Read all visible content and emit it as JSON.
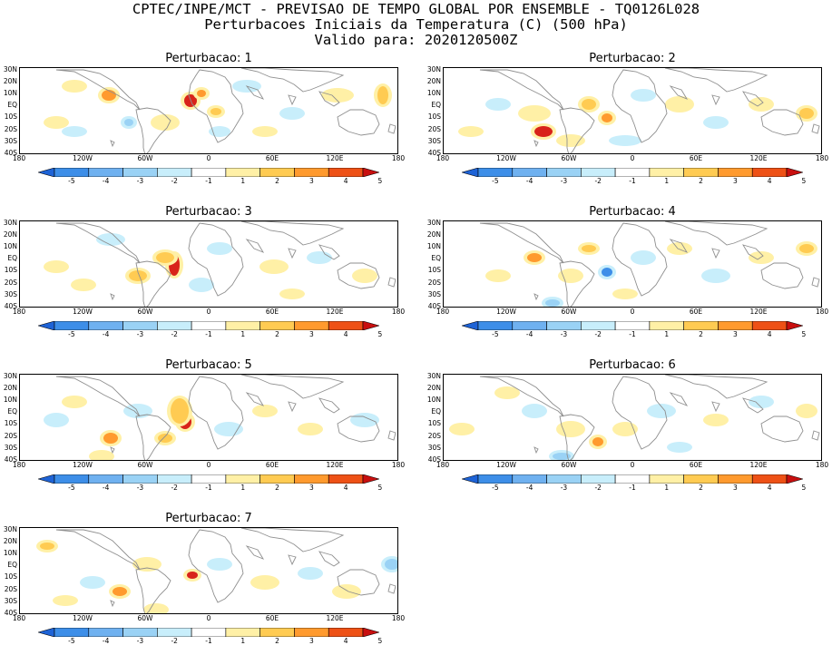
{
  "header": {
    "line1": "CPTEC/INPE/MCT - PREVISAO DE TEMPO GLOBAL POR ENSEMBLE - TQ0126L028",
    "line2": "Perturbacoes Iniciais da Temperatura (C) (500 hPa)",
    "line3": "Valido para: 2020120500Z"
  },
  "panels": [
    {
      "title": "Perturbacao: 1"
    },
    {
      "title": "Perturbacao: 2"
    },
    {
      "title": "Perturbacao: 3"
    },
    {
      "title": "Perturbacao: 4"
    },
    {
      "title": "Perturbacao: 5"
    },
    {
      "title": "Perturbacao: 6"
    },
    {
      "title": "Perturbacao: 7"
    }
  ],
  "lat_labels": [
    "30N",
    "20N",
    "10N",
    "EQ",
    "10S",
    "20S",
    "30S",
    "40S"
  ],
  "lon_labels": [
    "180",
    "120W",
    "60W",
    "0",
    "60E",
    "120E",
    "180"
  ],
  "colorbar": {
    "labels": [
      "-5",
      "-4",
      "-3",
      "-2",
      "-1",
      "1",
      "2",
      "3",
      "4",
      "5"
    ],
    "colors": [
      "#1e63d6",
      "#3d8ee8",
      "#6fb1f0",
      "#9ad2f5",
      "#c8eefb",
      "#ffffff",
      "#fff0a6",
      "#ffcb52",
      "#ff9a2e",
      "#ee5116",
      "#c80f0f"
    ]
  },
  "map_colors": {
    "land_outline": "#8f8f8f",
    "warm_light": "#fff0a6",
    "warm_mid": "#ffcb52",
    "warm_strong": "#ff9a2e",
    "warm_max": "#d8231a",
    "cool_light": "#c8eefb",
    "cool_mid": "#9ad2f5",
    "cool_strong": "#3d8ee8"
  }
}
